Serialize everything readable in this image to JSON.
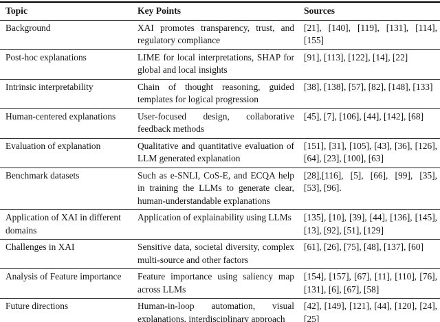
{
  "colors": {
    "background": "#ffffff",
    "text": "#161616",
    "rule_heavy": "#000000",
    "rule_light": "#1c1c1c"
  },
  "table": {
    "headers": {
      "topic": "Topic",
      "key_points": "Key Points",
      "sources": "Sources"
    },
    "rows": [
      {
        "topic": "Background",
        "key_points": "XAI promotes transparency, trust, and regulatory compliance",
        "sources": "[21], [140], [119], [131], [114], [155]"
      },
      {
        "topic": "Post-hoc explanations",
        "key_points": "LIME for local interpretations, SHAP for global and local insights",
        "sources": "[91], [113], [122], [14], [22]"
      },
      {
        "topic": "Intrinsic interpretability",
        "key_points": "Chain of thought reasoning, guided templates for logical progression",
        "sources": "[38], [138], [57], [82], [148], [133]"
      },
      {
        "topic": "Human-centered explanations",
        "key_points": "User-focused design, collaborative feedback methods",
        "sources": "[45], [7], [106], [44], [142], [68]"
      },
      {
        "topic": "Evaluation of explanation",
        "key_points": "Qualitative and quantitative evaluation of LLM generated explanation",
        "sources": "[151], [31], [105], [43], [36], [126], [64], [23], [100], [63]"
      },
      {
        "topic": "Benchmark datasets",
        "key_points": "Such as e-SNLI, CoS-E, and ECQA help in training the LLMs to generate clear, human-understandable explanations",
        "sources": "[28],[116], [5], [66], [99], [35], [53], [96]."
      },
      {
        "topic": "Application of XAI in different domains",
        "key_points": "Application of explainability using LLMs",
        "sources": "[135], [10], [39], [44], [136], [145], [13], [92], [51], [129]"
      },
      {
        "topic": "Challenges in XAI",
        "key_points": "Sensitive data, societal diversity, complex multi-source and other factors",
        "sources": "[61], [26], [75], [48], [137], [60]"
      },
      {
        "topic": "Analysis of Feature importance",
        "key_points": "Feature importance using saliency map across LLMs",
        "sources": "[154], [157], [67], [11], [110], [76], [131], [6], [67], [58]"
      },
      {
        "topic": "Future directions",
        "key_points": "Human-in-loop automation, visual explanations, interdisciplinary approach",
        "sources": "[42], [149], [121], [44], [120], [24], [25]"
      }
    ]
  }
}
